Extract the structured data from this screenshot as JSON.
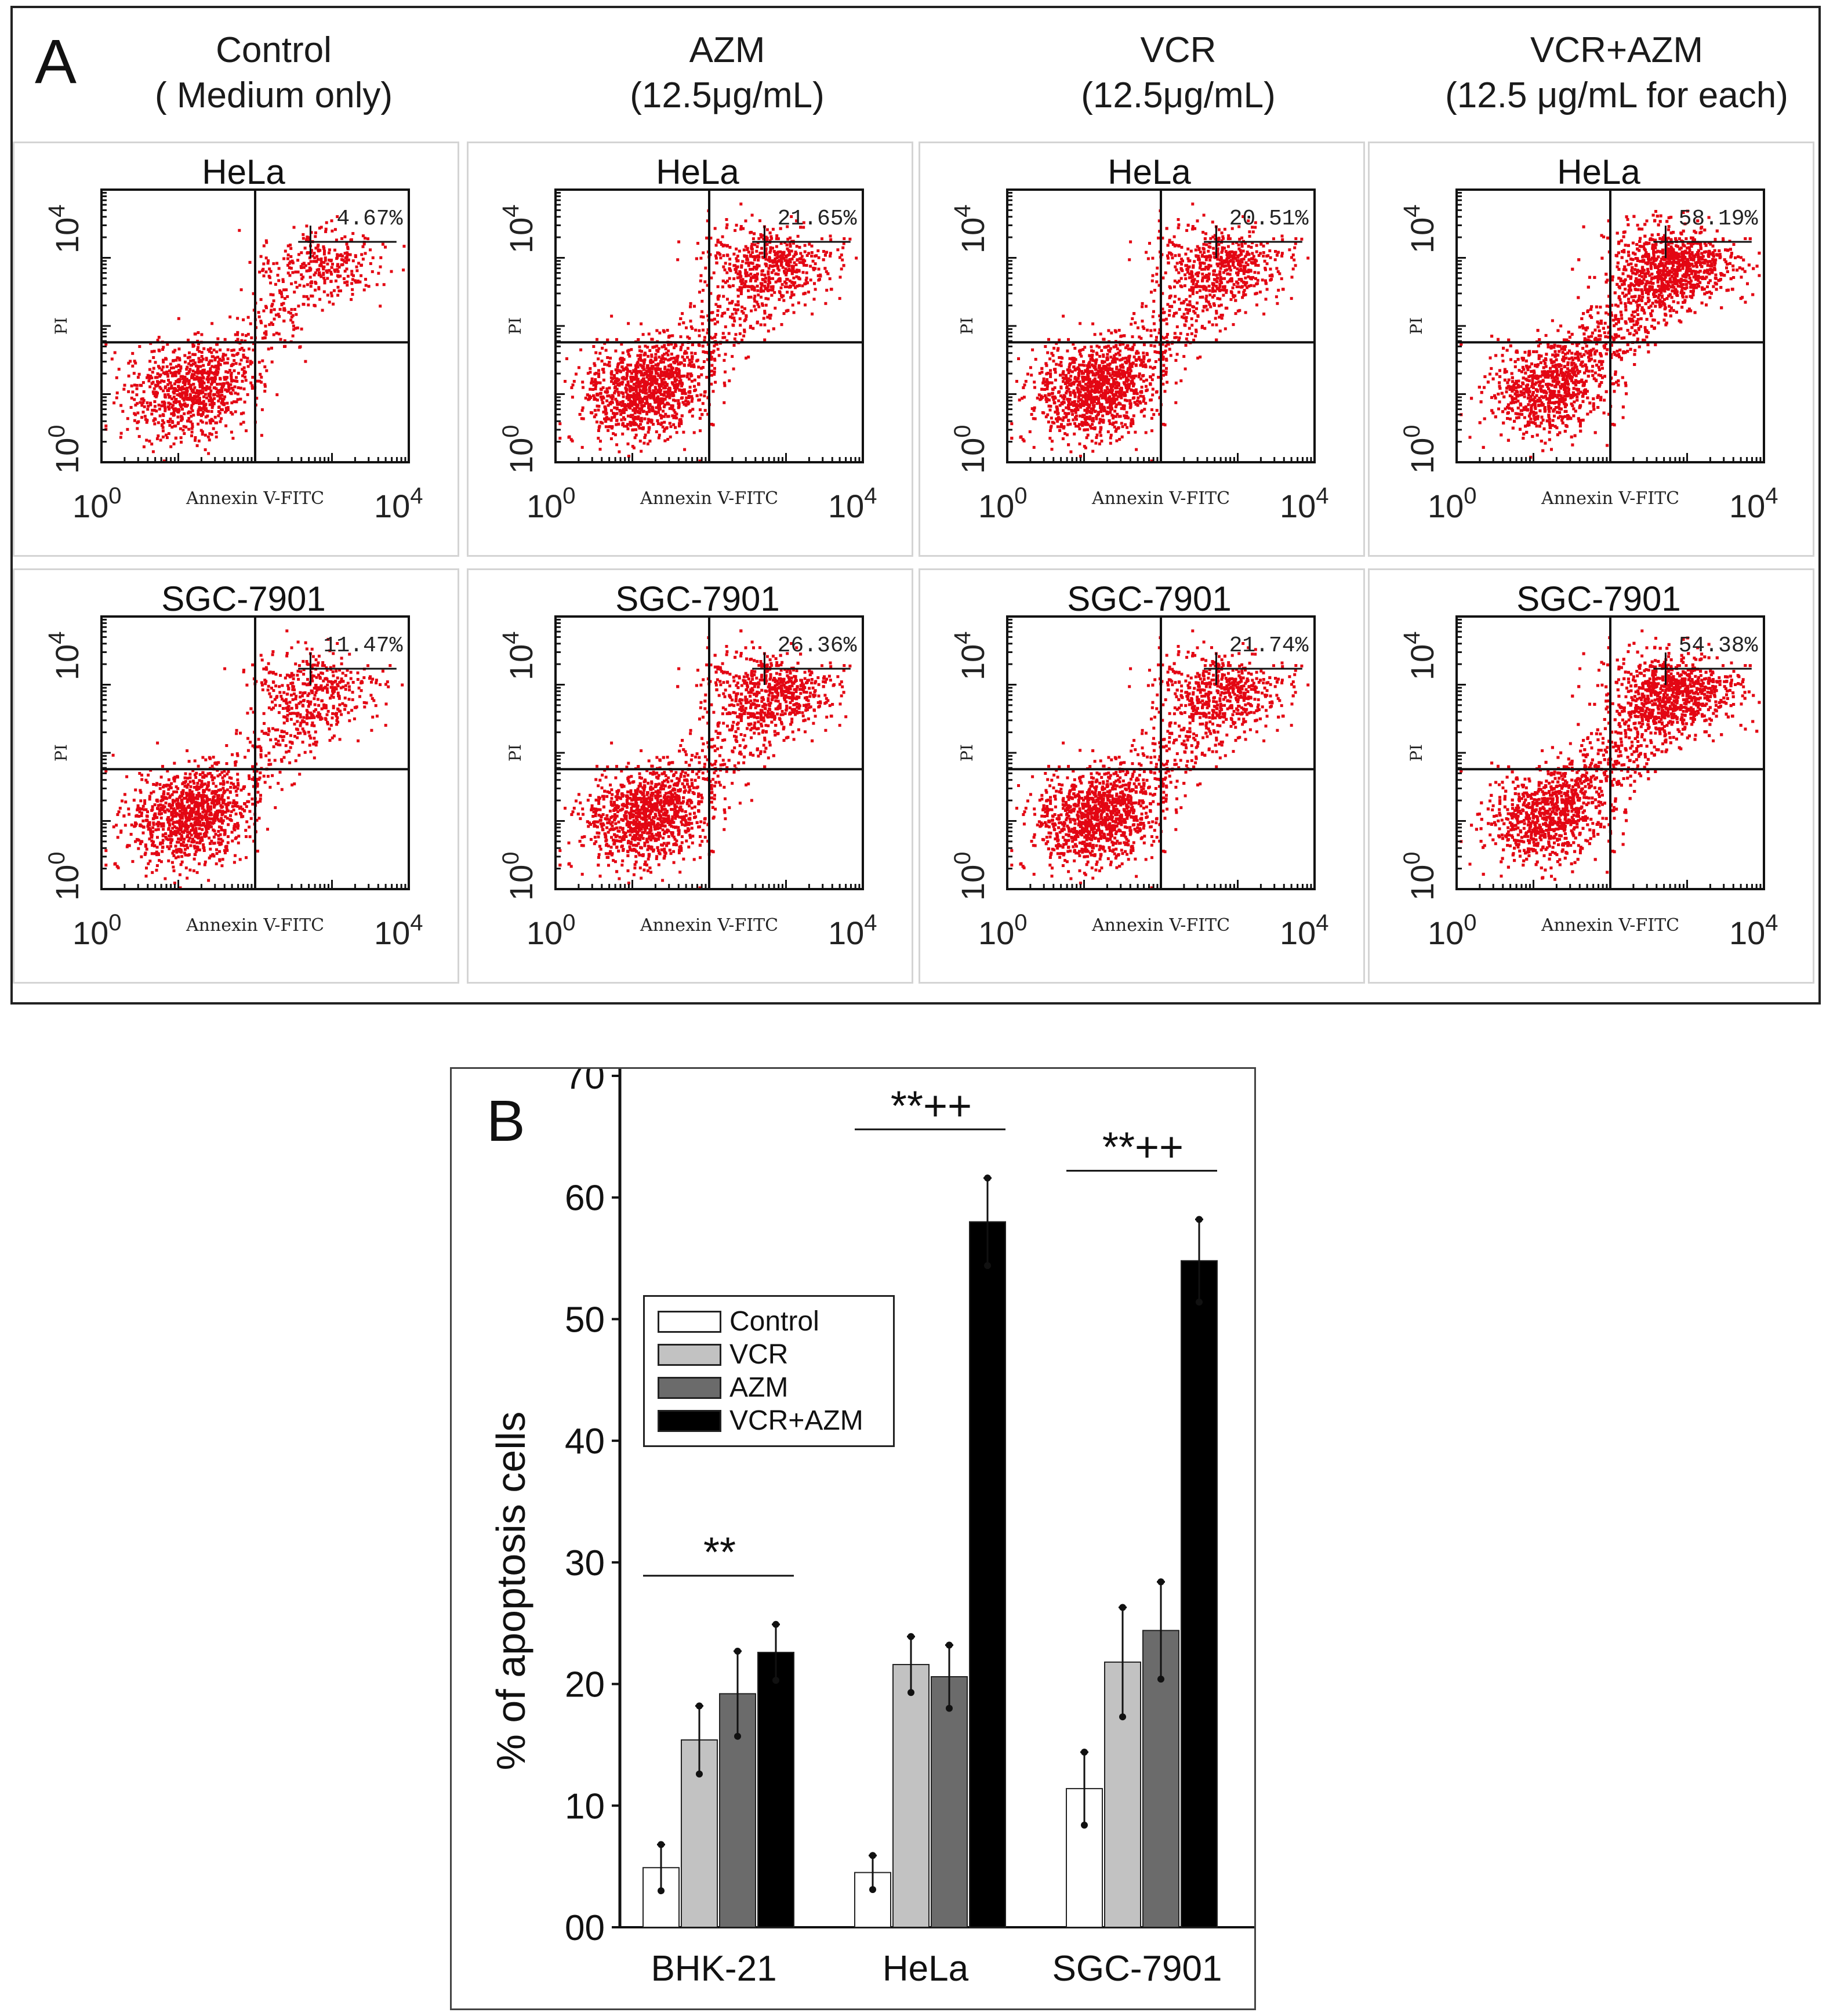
{
  "panel_a": {
    "letter": "A",
    "columns": [
      {
        "title": "Control",
        "subtitle": "( Medium only)"
      },
      {
        "title": "AZM",
        "subtitle": "(12.5μg/mL)"
      },
      {
        "title": "VCR",
        "subtitle": "(12.5μg/mL)"
      },
      {
        "title": "VCR+AZM",
        "subtitle": "(12.5 μg/mL for each)"
      }
    ],
    "x_axis_label": "Annexin V-FITC",
    "y_axis_label": "PI",
    "tick_min": "10",
    "tick_max": "10",
    "tick_min_exp": "0",
    "tick_max_exp": "4",
    "plots": [
      {
        "cell_line": "HeLa",
        "percent": "4.67%",
        "value": 4.67
      },
      {
        "cell_line": "HeLa",
        "percent": "21.65%",
        "value": 21.65
      },
      {
        "cell_line": "HeLa",
        "percent": "20.51%",
        "value": 20.51
      },
      {
        "cell_line": "HeLa",
        "percent": "58.19%",
        "value": 58.19
      },
      {
        "cell_line": "SGC-7901",
        "percent": "11.47%",
        "value": 11.47
      },
      {
        "cell_line": "SGC-7901",
        "percent": "26.36%",
        "value": 26.36
      },
      {
        "cell_line": "SGC-7901",
        "percent": "21.74%",
        "value": 21.74
      },
      {
        "cell_line": "SGC-7901",
        "percent": "54.38%",
        "value": 54.38
      }
    ],
    "dot_color": "#e30613"
  },
  "panel_b": {
    "letter": "B"
  },
  "chart_data": {
    "type": "bar",
    "title": "",
    "xlabel": "",
    "ylabel": "% of apoptosis cells",
    "ylim": [
      0,
      70
    ],
    "yticks": [
      0,
      10,
      20,
      30,
      40,
      50,
      60,
      70
    ],
    "ytick_labels": [
      "00",
      "10",
      "20",
      "30",
      "40",
      "50",
      "60",
      "70"
    ],
    "categories": [
      "BHK-21",
      "HeLa",
      "SGC-7901"
    ],
    "series": [
      {
        "name": "Control",
        "color": "#ffffff",
        "values": [
          4.9,
          4.5,
          11.4
        ],
        "errors": [
          1.9,
          1.4,
          3.0
        ]
      },
      {
        "name": "VCR",
        "color": "#c2c2c2",
        "values": [
          15.4,
          21.6,
          21.8
        ],
        "errors": [
          2.8,
          2.3,
          4.5
        ]
      },
      {
        "name": "AZM",
        "color": "#6b6b6b",
        "values": [
          19.2,
          20.6,
          24.4
        ],
        "errors": [
          3.5,
          2.6,
          4.0
        ]
      },
      {
        "name": "VCR+AZM",
        "color": "#000000",
        "values": [
          22.6,
          58.0,
          54.8
        ],
        "errors": [
          2.3,
          3.6,
          3.4
        ]
      }
    ],
    "significance": [
      {
        "category": "BHK-21",
        "label": "**"
      },
      {
        "category": "HeLa",
        "label": "**++"
      },
      {
        "category": "SGC-7901",
        "label": "**++"
      }
    ]
  }
}
